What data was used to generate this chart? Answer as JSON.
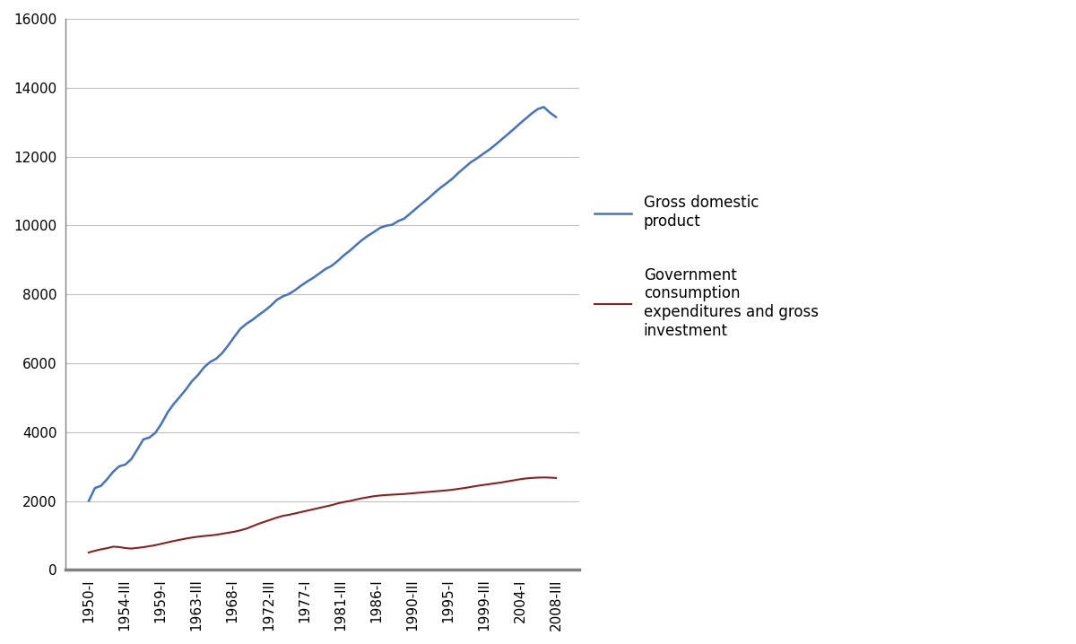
{
  "title": "",
  "gdp_label": "Gross domestic\nproduct",
  "gov_label": "Government\nconsumption\nexpenditures and gross\ninvestment",
  "line1_color": "#4472C4",
  "line2_color": "#8B2020",
  "background_color": "#FFFFFF",
  "ylim": [
    0,
    16000
  ],
  "yticks": [
    0,
    2000,
    4000,
    6000,
    8000,
    10000,
    12000,
    14000,
    16000
  ],
  "xtick_labels": [
    "1950-I",
    "1954-III",
    "1959-I",
    "1963-III",
    "1968-I",
    "1972-III",
    "1977-I",
    "1981-III",
    "1986-I",
    "1990-III",
    "1995-I",
    "1999-III",
    "2004-I",
    "2008-III"
  ],
  "gdp": [
    2006.0,
    2376.0,
    2441.0,
    2631.0,
    2847.0,
    3008.0,
    3057.0,
    3215.0,
    3497.0,
    3791.0,
    3844.0,
    3986.0,
    4254.0,
    4575.0,
    4818.0,
    5024.0,
    5238.0,
    5477.0,
    5659.0,
    5882.0,
    6037.0,
    6131.0,
    6300.0,
    6523.0,
    6771.0,
    7002.0,
    7148.0,
    7263.0,
    7399.0,
    7527.0,
    7671.0,
    7841.0,
    7944.0,
    8011.0,
    8123.0,
    8254.0,
    8374.0,
    8481.0,
    8606.0,
    8735.0,
    8826.0,
    8965.0,
    9128.0,
    9264.0,
    9422.0,
    9572.0,
    9701.0,
    9812.0,
    9931.0,
    9992.0,
    10021.0,
    10128.0,
    10200.0,
    10350.0,
    10500.0,
    10648.0,
    10790.0,
    10952.0,
    11100.0,
    11230.0,
    11370.0,
    11540.0,
    11690.0,
    11840.0,
    11950.0,
    12080.0,
    12200.0,
    12340.0,
    12490.0,
    12640.0,
    12790.0,
    12950.0,
    13100.0,
    13250.0,
    13380.0,
    13440.0,
    13280.0,
    13150.0
  ],
  "gov": [
    507.0,
    555.0,
    598.0,
    630.0,
    675.0,
    665.0,
    635.0,
    620.0,
    640.0,
    660.0,
    690.0,
    720.0,
    760.0,
    800.0,
    840.0,
    875.0,
    910.0,
    940.0,
    965.0,
    985.0,
    1000.0,
    1020.0,
    1050.0,
    1080.0,
    1110.0,
    1150.0,
    1200.0,
    1270.0,
    1340.0,
    1400.0,
    1460.0,
    1520.0,
    1570.0,
    1600.0,
    1640.0,
    1680.0,
    1720.0,
    1760.0,
    1800.0,
    1840.0,
    1880.0,
    1930.0,
    1970.0,
    2000.0,
    2040.0,
    2080.0,
    2110.0,
    2140.0,
    2160.0,
    2175.0,
    2185.0,
    2195.0,
    2205.0,
    2220.0,
    2235.0,
    2250.0,
    2265.0,
    2280.0,
    2295.0,
    2310.0,
    2330.0,
    2355.0,
    2380.0,
    2410.0,
    2440.0,
    2465.0,
    2490.0,
    2515.0,
    2540.0,
    2570.0,
    2600.0,
    2630.0,
    2655.0,
    2670.0,
    2680.0,
    2685.0,
    2680.0,
    2670.0
  ],
  "n_points": 78,
  "grid_color": "#C0C0C0",
  "axis_color": "#808080",
  "spine_bottom_color": "#808080",
  "legend_fontsize": 12,
  "tick_fontsize": 11
}
